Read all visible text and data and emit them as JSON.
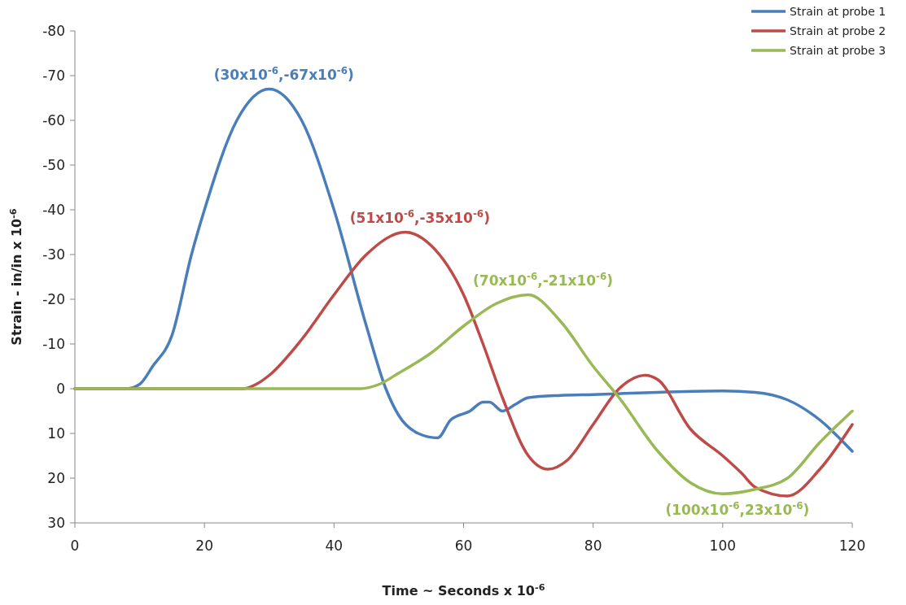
{
  "chart_data": {
    "type": "line",
    "xlabel": "Time ~ Seconds x 10$^{-6}$",
    "ylabel": "Strain - in/in x 10$^{-6}$",
    "xlim": [
      0,
      120
    ],
    "xticks": [
      0,
      20,
      40,
      60,
      80,
      100,
      120
    ],
    "ylim": [
      30,
      -80
    ],
    "yticks": [
      -80,
      -70,
      -60,
      -50,
      -40,
      -30,
      -20,
      -10,
      0,
      10,
      20,
      30
    ],
    "grid": false,
    "legend": "top right",
    "marker": "none",
    "line_style": "solid",
    "series": [
      {
        "name": "Strain at probe 1",
        "color": "#4a7ebb",
        "x": [
          0,
          8,
          10,
          12,
          15,
          18,
          20,
          25,
          30,
          35,
          40,
          45,
          48,
          50,
          53,
          56,
          58,
          61,
          63,
          64,
          66,
          68,
          70,
          75,
          80,
          90,
          100,
          105,
          110,
          115,
          120
        ],
        "values": [
          0,
          0,
          -1,
          -5,
          -12,
          -30,
          -40,
          -60,
          -67,
          -60,
          -40,
          -14,
          0,
          6,
          10,
          11,
          7,
          5,
          3,
          3,
          5,
          3.5,
          2,
          1.5,
          1.3,
          0.8,
          0.5,
          0.8,
          2.5,
          7,
          14
        ]
      },
      {
        "name": "Strain at probe 2",
        "color": "#be4b48",
        "x": [
          0,
          26,
          28,
          30,
          35,
          40,
          45,
          51,
          55,
          60,
          63,
          66,
          70,
          73,
          76,
          80,
          84,
          88,
          90,
          95,
          100,
          103,
          105,
          110,
          115,
          120
        ],
        "values": [
          0,
          0,
          -1,
          -3,
          -11,
          -21,
          -30,
          -35,
          -32,
          -21,
          -10,
          2,
          15,
          18,
          16,
          8,
          0,
          -3,
          -2,
          9,
          15,
          19,
          22,
          24,
          18,
          8
        ]
      },
      {
        "name": "Strain at probe 3",
        "color": "#98b954",
        "x": [
          0,
          44,
          47,
          50,
          55,
          60,
          65,
          70,
          75,
          80,
          84,
          90,
          95,
          100,
          105,
          110,
          115,
          120
        ],
        "values": [
          0,
          0,
          -1,
          -3.5,
          -8,
          -14,
          -19,
          -21,
          -15,
          -5,
          2,
          14,
          21,
          23.5,
          22.5,
          20,
          12,
          5
        ]
      }
    ],
    "annotations": [
      {
        "text": "(30x10$^{-6}$,-67x10$^{-6}$)",
        "x": 30,
        "y": -67
      },
      {
        "text": "(51x10$^{-6}$,-35x10$^{-6}$)",
        "x": 51,
        "y": -35
      },
      {
        "text": "(70x10$^{-6}$,-21x10$^{-6}$)",
        "x": 70,
        "y": -21
      },
      {
        "text": "(100x10$^{-6}$,23x10$^{-6}$)",
        "x": 100,
        "y": 23
      }
    ]
  }
}
